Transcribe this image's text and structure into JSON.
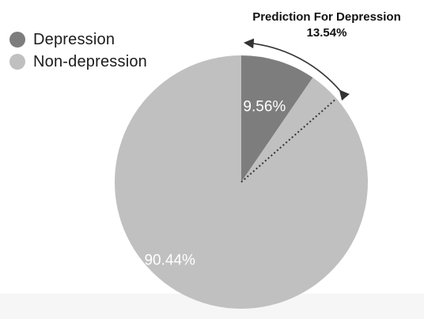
{
  "chart_data": {
    "type": "pie",
    "title": "",
    "categories": [
      "Depression",
      "Non-depression"
    ],
    "values": [
      9.56,
      90.44
    ],
    "data_labels": [
      "9.56%",
      "90.44%"
    ],
    "colors": [
      "#7d7d7d",
      "#c0c0c0"
    ],
    "start_angle_deg": 0,
    "direction": "clockwise",
    "legend": {
      "placement": "top-left",
      "items": [
        {
          "label": "Depression",
          "color": "#7d7d7d"
        },
        {
          "label": "Non-depression",
          "color": "#c0c0c0"
        }
      ]
    },
    "annotation": {
      "title": "Prediction For Depression",
      "value_label": "13.54%",
      "value": 13.54
    }
  }
}
